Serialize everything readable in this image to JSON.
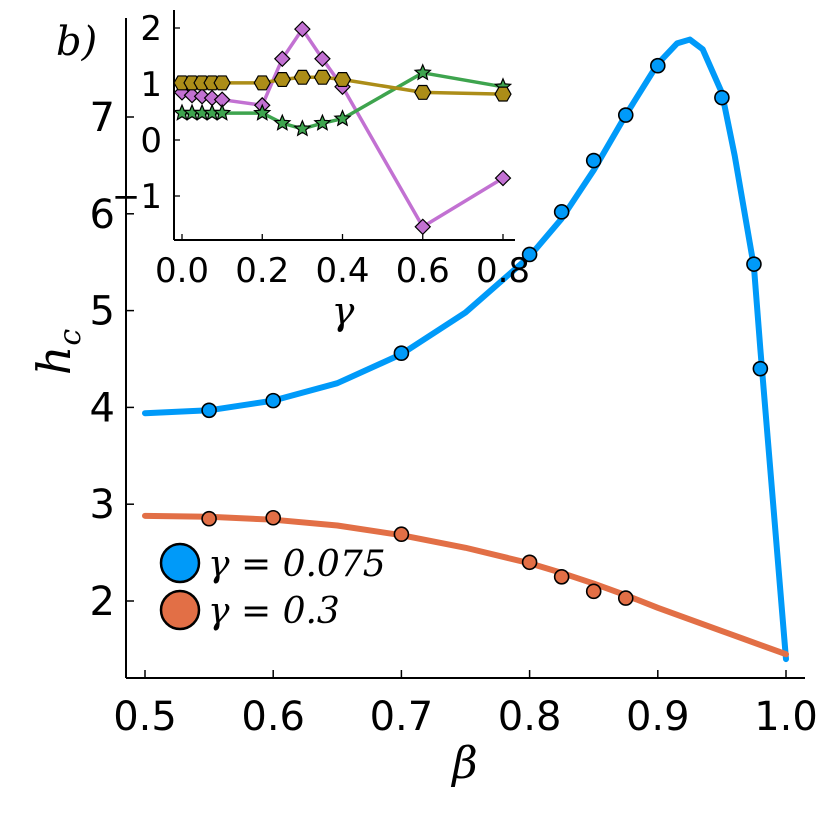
{
  "panel_label": "b)",
  "chart_data": [
    {
      "id": "main",
      "type": "line",
      "xlabel": "β",
      "ylabel": "h_c",
      "ylabel_base": "h",
      "ylabel_sub": "c",
      "xlim": [
        0.5,
        1.0
      ],
      "ylim": [
        1.25,
        8.2
      ],
      "xticks": [
        0.5,
        0.6,
        0.7,
        0.8,
        0.9,
        1.0
      ],
      "xtick_labels": [
        "0.5",
        "0.6",
        "0.7",
        "0.8",
        "0.9",
        "1.0"
      ],
      "yticks": [
        2,
        3,
        4,
        5,
        6,
        7
      ],
      "ytick_labels": [
        "2",
        "3",
        "4",
        "5",
        "6",
        "7"
      ],
      "legend_position": "bottom-left",
      "series": [
        {
          "name": "γ = 0.075",
          "color": "#009af9",
          "curve_x": [
            0.5,
            0.55,
            0.6,
            0.65,
            0.7,
            0.75,
            0.8,
            0.825,
            0.85,
            0.875,
            0.9,
            0.915,
            0.925,
            0.935,
            0.95,
            0.96,
            0.975,
            0.98,
            0.99,
            1.0
          ],
          "curve_y": [
            3.94,
            3.97,
            4.07,
            4.25,
            4.55,
            4.98,
            5.56,
            5.95,
            6.45,
            7.02,
            7.55,
            7.76,
            7.8,
            7.7,
            7.25,
            6.6,
            5.45,
            4.6,
            3.0,
            1.4
          ],
          "points_x": [
            0.55,
            0.6,
            0.7,
            0.8,
            0.825,
            0.85,
            0.875,
            0.9,
            0.95,
            0.975,
            0.98
          ],
          "points_y": [
            3.97,
            4.07,
            4.56,
            5.58,
            6.02,
            6.55,
            7.02,
            7.53,
            7.2,
            5.48,
            4.4
          ]
        },
        {
          "name": "γ = 0.3",
          "color": "#e26f46",
          "curve_x": [
            0.5,
            0.55,
            0.6,
            0.65,
            0.7,
            0.75,
            0.8,
            0.825,
            0.85,
            0.875,
            0.9,
            0.95,
            1.0
          ],
          "curve_y": [
            2.88,
            2.87,
            2.84,
            2.78,
            2.68,
            2.55,
            2.39,
            2.29,
            2.18,
            2.06,
            1.93,
            1.69,
            1.45
          ],
          "points_x": [
            0.55,
            0.6,
            0.7,
            0.8,
            0.825,
            0.85,
            0.875
          ],
          "points_y": [
            2.85,
            2.86,
            2.69,
            2.4,
            2.25,
            2.1,
            2.03
          ]
        }
      ]
    },
    {
      "id": "inset",
      "type": "line",
      "xlabel": "γ",
      "ylabel": "",
      "xlim": [
        -0.03,
        0.82
      ],
      "ylim": [
        -1.8,
        2.3
      ],
      "xticks": [
        0.0,
        0.2,
        0.4,
        0.6,
        0.8
      ],
      "xtick_labels": [
        "0.0",
        "0.2",
        "0.4",
        "0.6",
        "0.8"
      ],
      "yticks": [
        2,
        1,
        0,
        -1
      ],
      "ytick_labels": [
        "2",
        "1",
        "0",
        "−1"
      ],
      "series": [
        {
          "name": "diamond series",
          "color": "#c271d2",
          "marker": "diamond",
          "x": [
            0.0,
            0.025,
            0.05,
            0.075,
            0.1,
            0.2,
            0.25,
            0.3,
            0.35,
            0.4,
            0.6,
            0.8
          ],
          "y": [
            0.85,
            0.8,
            0.78,
            0.75,
            0.72,
            0.62,
            1.45,
            1.98,
            1.45,
            0.95,
            -1.55,
            -0.68
          ]
        },
        {
          "name": "star series",
          "color": "#3ea44e",
          "marker": "star",
          "x": [
            0.0,
            0.025,
            0.05,
            0.075,
            0.1,
            0.2,
            0.25,
            0.3,
            0.35,
            0.4,
            0.6,
            0.8
          ],
          "y": [
            0.48,
            0.48,
            0.48,
            0.48,
            0.48,
            0.48,
            0.3,
            0.2,
            0.3,
            0.38,
            1.2,
            0.95
          ]
        },
        {
          "name": "hexagon series",
          "color": "#ac8d18",
          "marker": "hexagon",
          "x": [
            0.0,
            0.025,
            0.05,
            0.075,
            0.1,
            0.2,
            0.25,
            0.3,
            0.35,
            0.4,
            0.6,
            0.8
          ],
          "y": [
            1.02,
            1.02,
            1.02,
            1.02,
            1.02,
            1.02,
            1.08,
            1.12,
            1.12,
            1.08,
            0.85,
            0.82
          ]
        }
      ]
    }
  ]
}
